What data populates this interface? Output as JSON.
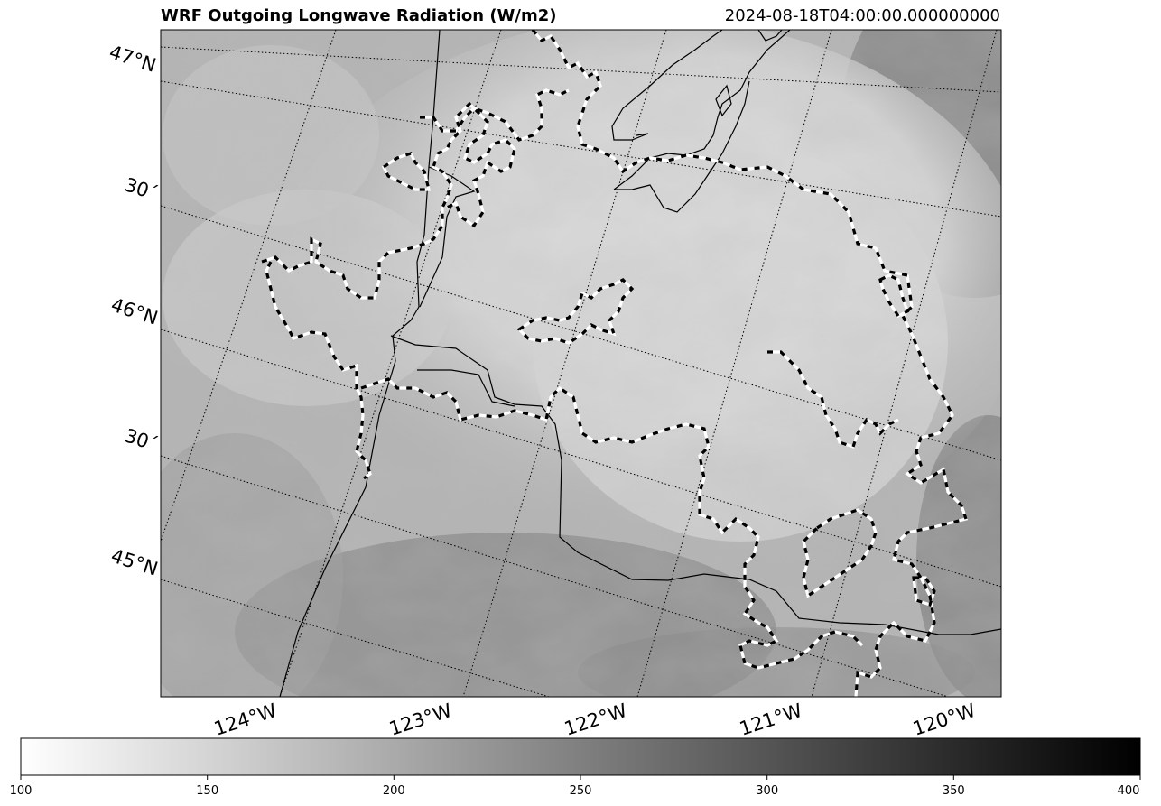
{
  "title": "WRF Outgoing Longwave Radiation (W/m2)",
  "timestamp": "2024-08-18T04:00:00.000000000",
  "lat_labels": [
    "47°N",
    "30´",
    "46°N",
    "30´",
    "45°N"
  ],
  "lon_labels": [
    "124°W",
    "123°W",
    "122°W",
    "121°W",
    "120°W"
  ],
  "colorbar": {
    "min": 100,
    "max": 400,
    "colormap": "gray_r",
    "ticks": [
      "100",
      "150",
      "200",
      "250",
      "300",
      "350",
      "400"
    ]
  },
  "colors": {
    "background": "#ffffff",
    "border_lines": "#000000",
    "contour_dash_a": "#000000",
    "contour_dash_b": "#ffffff"
  }
}
